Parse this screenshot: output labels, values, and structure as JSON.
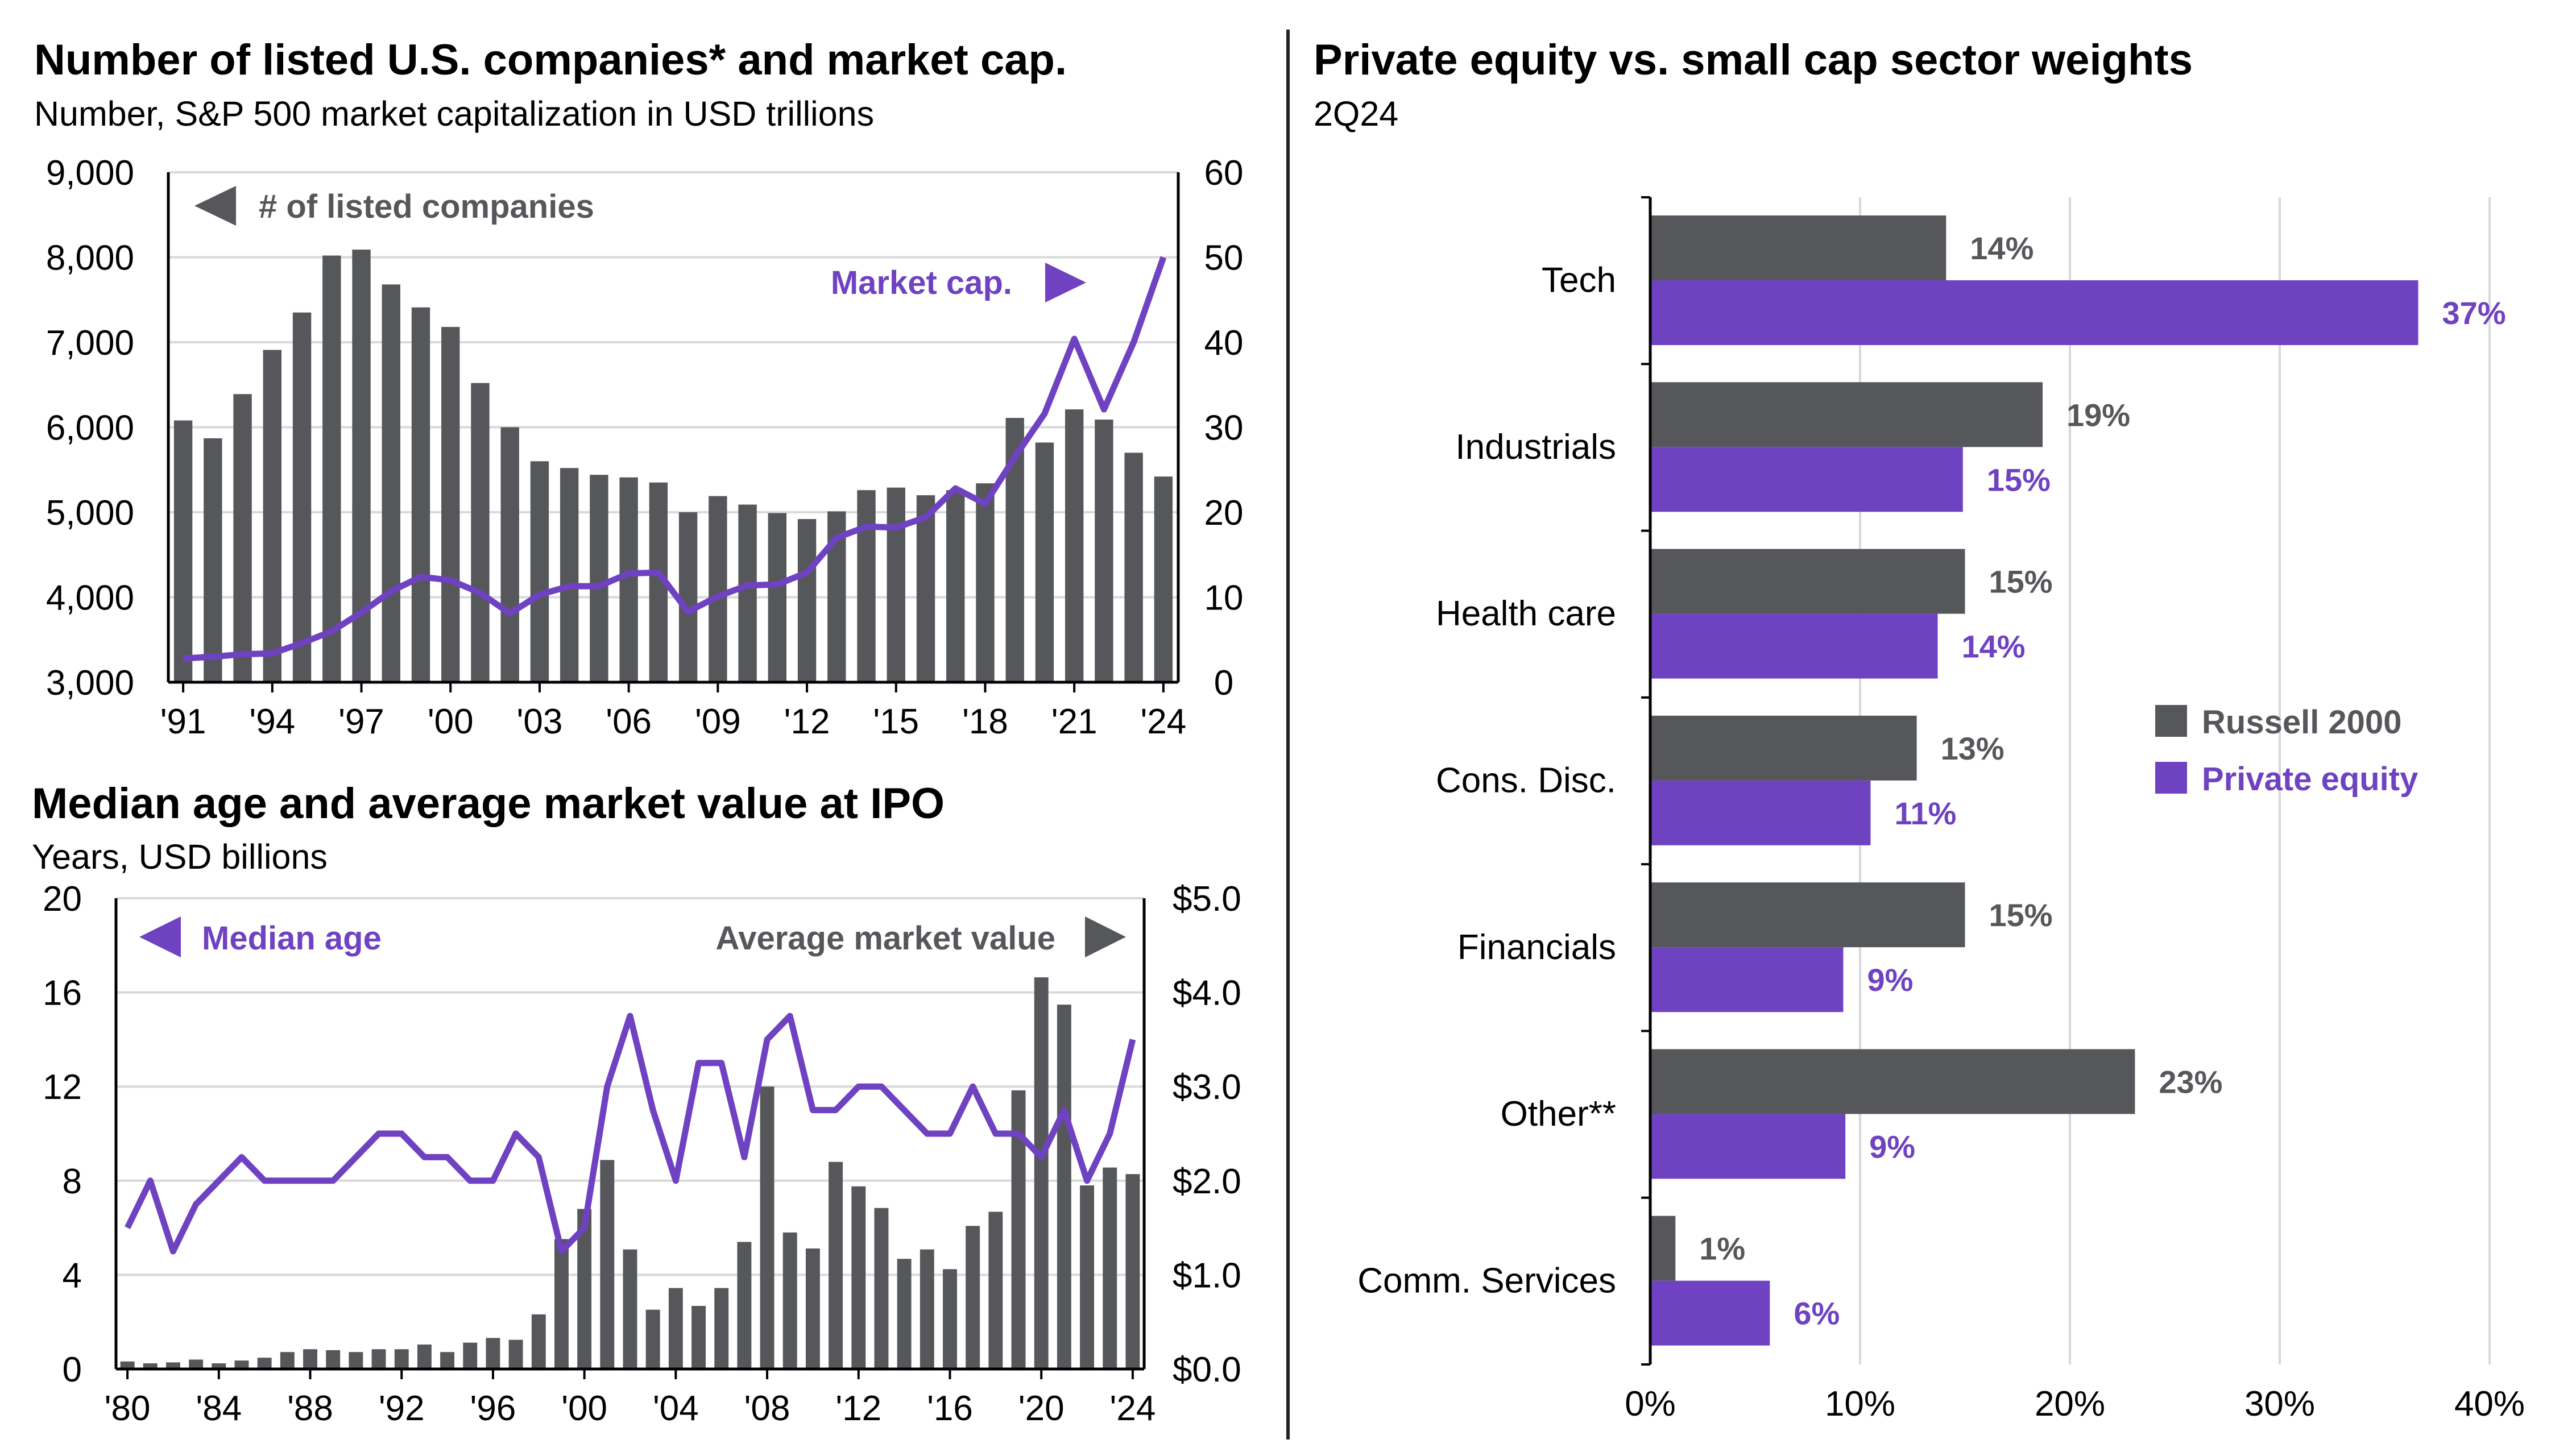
{
  "colors": {
    "gray": "#55575a",
    "purple": "#6f42c1",
    "grid": "#d9d9d9",
    "axis": "#000000"
  },
  "panels": {
    "companies": {
      "title": "Number of listed U.S. companies* and market cap.",
      "subtitle": "Number, S&P 500 market capitalization in USD trillions"
    },
    "ipo": {
      "title": "Median age and average market value at IPO",
      "subtitle": "Years, USD billions"
    },
    "sector": {
      "title": "Private equity vs. small cap sector weights",
      "subtitle": "2Q24"
    }
  },
  "chart_data": [
    {
      "id": "companies",
      "type": "bar+line",
      "title": "Number of listed U.S. companies* and market cap.",
      "years": [
        1991,
        1992,
        1993,
        1994,
        1995,
        1996,
        1997,
        1998,
        1999,
        2000,
        2001,
        2002,
        2003,
        2004,
        2005,
        2006,
        2007,
        2008,
        2009,
        2010,
        2011,
        2012,
        2013,
        2014,
        2015,
        2016,
        2017,
        2018,
        2019,
        2020,
        2021,
        2022,
        2023,
        2024
      ],
      "x_tick_labels": [
        "'91",
        "'94",
        "'97",
        "'00",
        "'03",
        "'06",
        "'09",
        "'12",
        "'15",
        "'18",
        "'21",
        "'24"
      ],
      "left_axis": {
        "ylim": [
          3000,
          9000
        ],
        "ticks": [
          "3,000",
          "4,000",
          "5,000",
          "6,000",
          "7,000",
          "8,000",
          "9,000"
        ]
      },
      "right_axis": {
        "ylim": [
          0,
          60
        ],
        "ticks": [
          "0",
          "10",
          "20",
          "30",
          "40",
          "50",
          "60"
        ]
      },
      "series": [
        {
          "name": "# of listed companies",
          "type": "bar",
          "axis": "left",
          "values": [
            6080,
            5870,
            6390,
            6910,
            7350,
            8020,
            8090,
            7680,
            7410,
            7180,
            6520,
            6000,
            5600,
            5520,
            5440,
            5410,
            5350,
            5000,
            5190,
            5090,
            4990,
            4920,
            5010,
            5260,
            5290,
            5200,
            5260,
            5340,
            6110,
            5820,
            6210,
            6090,
            5700,
            5420
          ]
        },
        {
          "name": "Market cap.",
          "type": "line",
          "axis": "right",
          "values": [
            2.8,
            3.0,
            3.3,
            3.4,
            4.6,
            6.0,
            8.2,
            10.7,
            12.4,
            12.0,
            10.5,
            8.1,
            10.3,
            11.3,
            11.3,
            12.8,
            12.9,
            8.3,
            10.1,
            11.4,
            11.5,
            12.9,
            17.0,
            18.3,
            18.2,
            19.4,
            22.8,
            21.0,
            26.5,
            31.6,
            40.4,
            32.1,
            40.0,
            50.0
          ]
        }
      ],
      "annotations": {
        "left_series_label": "# of listed companies",
        "right_series_label": "Market cap."
      }
    },
    {
      "id": "ipo",
      "type": "bar+line",
      "title": "Median age and average market value at IPO",
      "years": [
        1980,
        1981,
        1982,
        1983,
        1984,
        1985,
        1986,
        1987,
        1988,
        1989,
        1990,
        1991,
        1992,
        1993,
        1994,
        1995,
        1996,
        1997,
        1998,
        1999,
        2000,
        2001,
        2002,
        2003,
        2004,
        2005,
        2006,
        2007,
        2008,
        2009,
        2010,
        2011,
        2012,
        2013,
        2014,
        2015,
        2016,
        2017,
        2018,
        2019,
        2020,
        2021,
        2022,
        2023,
        2024
      ],
      "x_tick_labels": [
        "'80",
        "'84",
        "'88",
        "'92",
        "'96",
        "'00",
        "'04",
        "'08",
        "'12",
        "'16",
        "'20",
        "'24"
      ],
      "left_axis": {
        "ylim": [
          0,
          20
        ],
        "ticks": [
          "0",
          "4",
          "8",
          "12",
          "16",
          "20"
        ]
      },
      "right_axis": {
        "ylim": [
          0,
          5
        ],
        "ticks": [
          "$0.0",
          "$1.0",
          "$2.0",
          "$3.0",
          "$4.0",
          "$5.0"
        ]
      },
      "series": [
        {
          "name": "Average market value",
          "type": "bar",
          "axis": "right",
          "values": [
            0.08,
            0.06,
            0.07,
            0.1,
            0.06,
            0.09,
            0.12,
            0.18,
            0.21,
            0.2,
            0.18,
            0.21,
            0.21,
            0.26,
            0.18,
            0.28,
            0.33,
            0.31,
            0.58,
            1.38,
            1.7,
            2.22,
            1.27,
            0.63,
            0.86,
            0.67,
            0.86,
            1.35,
            3.0,
            1.45,
            1.28,
            2.2,
            1.94,
            1.71,
            1.17,
            1.27,
            1.06,
            1.52,
            1.67,
            2.96,
            4.16,
            3.87,
            1.95,
            2.14,
            2.07
          ]
        },
        {
          "name": "Median age",
          "type": "line",
          "axis": "left",
          "values": [
            6,
            8,
            5,
            7,
            8,
            9,
            8,
            8,
            8,
            8,
            9,
            10,
            10,
            9,
            9,
            8,
            8,
            10,
            9,
            5,
            6,
            12,
            15,
            11,
            8,
            13,
            13,
            9,
            14,
            15,
            11,
            11,
            12,
            12,
            11,
            10,
            10,
            12,
            10,
            10,
            9,
            11,
            8,
            10,
            14
          ]
        }
      ],
      "annotations": {
        "left_series_label": "Median age",
        "right_series_label": "Average market value"
      }
    },
    {
      "id": "sector",
      "type": "bar",
      "orientation": "horizontal",
      "title": "Private equity vs. small cap sector weights",
      "categories": [
        "Tech",
        "Industrials",
        "Health care",
        "Cons. Disc.",
        "Financials",
        "Other**",
        "Comm. Services"
      ],
      "xlim": [
        0,
        40
      ],
      "x_tick_labels": [
        "0%",
        "10%",
        "20%",
        "30%",
        "40%"
      ],
      "grid": true,
      "legend": "middle-right",
      "series": [
        {
          "name": "Russell 2000",
          "values": [
            14.1,
            18.7,
            15.0,
            12.7,
            15.0,
            23.1,
            1.2
          ],
          "labels": [
            "14%",
            "19%",
            "15%",
            "13%",
            "15%",
            "23%",
            "1%"
          ]
        },
        {
          "name": "Private equity",
          "values": [
            36.6,
            14.9,
            13.7,
            10.5,
            9.2,
            9.3,
            5.7
          ],
          "labels": [
            "37%",
            "15%",
            "14%",
            "11%",
            "9%",
            "9%",
            "6%"
          ]
        }
      ]
    }
  ]
}
